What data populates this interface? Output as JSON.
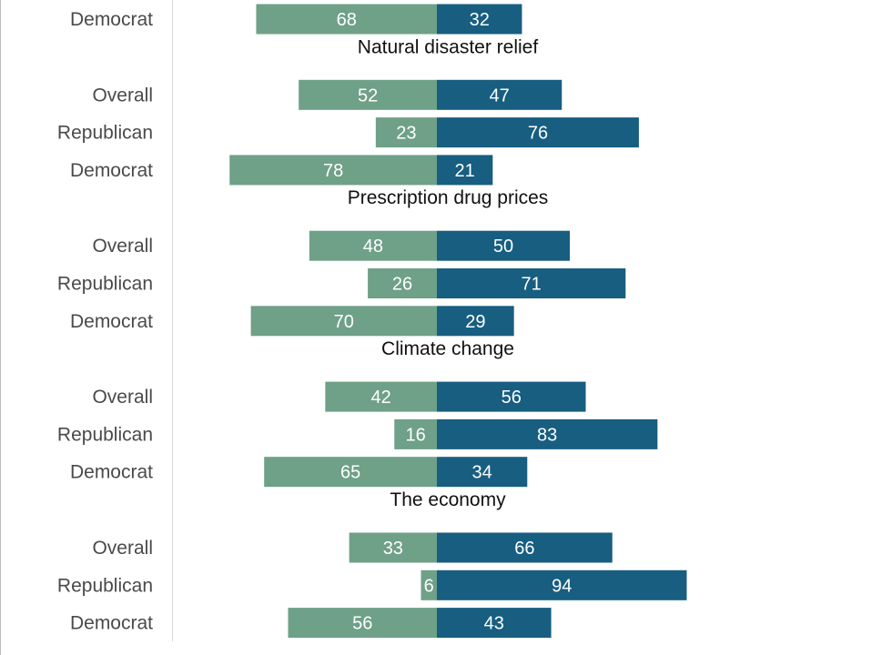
{
  "colors": {
    "left_series": "#6fa088",
    "right_series": "#175e80",
    "axis_line": "#d9d9d9",
    "left_edge": "#bdbdbd"
  },
  "chart_data": {
    "type": "bar",
    "orientation": "horizontal-diverging",
    "xlim": [
      -100,
      100
    ],
    "grid": false,
    "legend": "none",
    "series": [
      {
        "key": "left"
      },
      {
        "key": "right"
      }
    ],
    "groups": [
      {
        "title": "",
        "rows": [
          {
            "label": "Democrat",
            "left": 68,
            "right": 32
          }
        ]
      },
      {
        "title": "Natural disaster relief",
        "rows": [
          {
            "label": "Overall",
            "left": 52,
            "right": 47
          },
          {
            "label": "Republican",
            "left": 23,
            "right": 76
          },
          {
            "label": "Democrat",
            "left": 78,
            "right": 21
          }
        ]
      },
      {
        "title": "Prescription drug prices",
        "rows": [
          {
            "label": "Overall",
            "left": 48,
            "right": 50
          },
          {
            "label": "Republican",
            "left": 26,
            "right": 71
          },
          {
            "label": "Democrat",
            "left": 70,
            "right": 29
          }
        ]
      },
      {
        "title": "Climate change",
        "rows": [
          {
            "label": "Overall",
            "left": 42,
            "right": 56
          },
          {
            "label": "Republican",
            "left": 16,
            "right": 83
          },
          {
            "label": "Democrat",
            "left": 65,
            "right": 34
          }
        ]
      },
      {
        "title": "The economy",
        "rows": [
          {
            "label": "Overall",
            "left": 33,
            "right": 66
          },
          {
            "label": "Republican",
            "left": 6,
            "right": 94
          },
          {
            "label": "Democrat",
            "left": 56,
            "right": 43
          }
        ]
      }
    ]
  }
}
